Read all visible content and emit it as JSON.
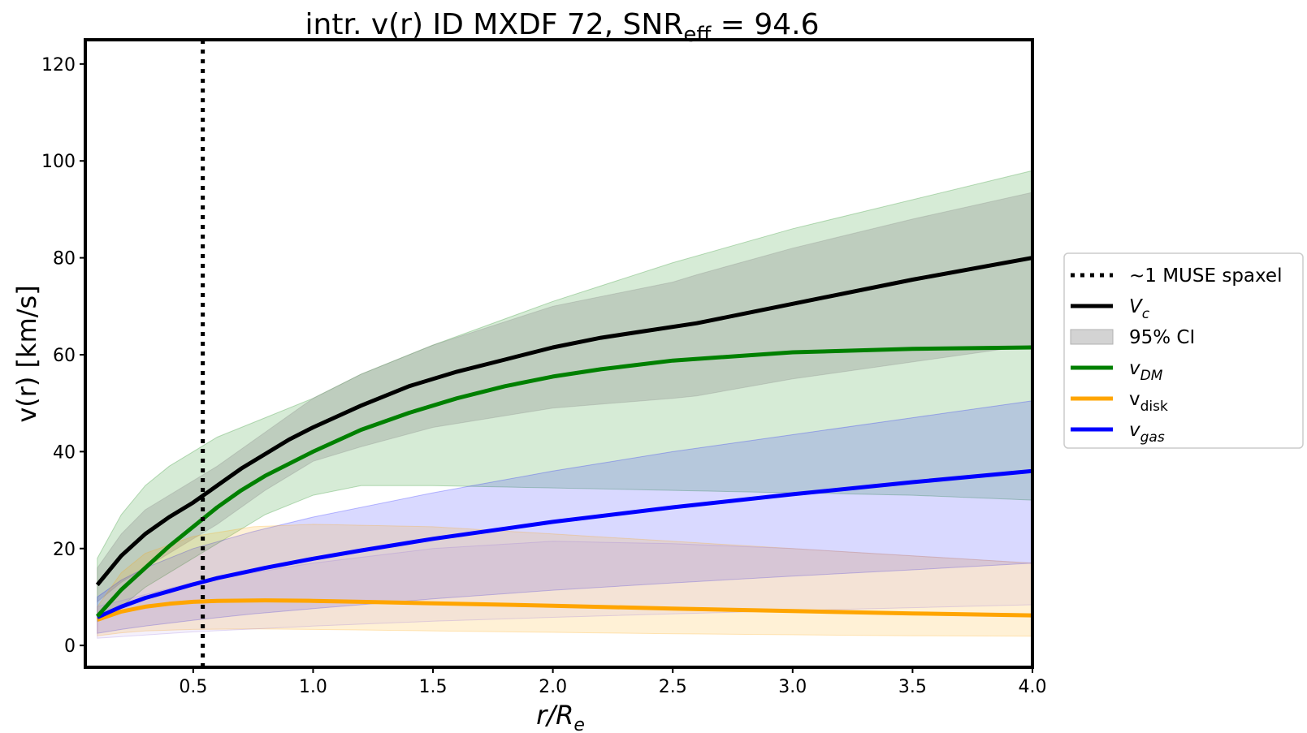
{
  "chart_data": {
    "type": "line",
    "title": {
      "main": "intr. v(r) ID MXDF 72, SNR",
      "sub": "eff",
      "tail": " = 94.6"
    },
    "xlabel": {
      "base": "r/R",
      "sub": "e"
    },
    "ylabel": "v(r) [km/s]",
    "xlim": [
      0.05,
      4.0
    ],
    "ylim": [
      -4.5,
      125
    ],
    "xticks": [
      0.5,
      1.0,
      1.5,
      2.0,
      2.5,
      3.0,
      3.5,
      4.0
    ],
    "xtick_labels": [
      "0.5",
      "1.0",
      "1.5",
      "2.0",
      "2.5",
      "3.0",
      "3.5",
      "4.0"
    ],
    "yticks": [
      0,
      20,
      40,
      60,
      80,
      100,
      120
    ],
    "ytick_labels": [
      "0",
      "20",
      "40",
      "60",
      "80",
      "100",
      "120"
    ],
    "grid": false,
    "legend_position": "right-outside",
    "vline": {
      "x": 0.54,
      "style": "dotted",
      "color": "#000000",
      "name": "~1 MUSE spaxel"
    },
    "legend": [
      {
        "kind": "dotted",
        "color": "#000000",
        "label": "~1 MUSE spaxel"
      },
      {
        "kind": "line",
        "color": "#000000",
        "label_base": "V",
        "label_sub": "c",
        "italic": true
      },
      {
        "kind": "patch",
        "color": "#d3d3d3",
        "label": "95% CI"
      },
      {
        "kind": "line",
        "color": "#008000",
        "label_base": "v",
        "label_sub": "DM",
        "italic": true
      },
      {
        "kind": "line",
        "color": "#ffa500",
        "label_base": "v",
        "label_sub": "disk",
        "italic": false
      },
      {
        "kind": "line",
        "color": "#0000ff",
        "label_base": "v",
        "label_sub": "gas",
        "italic": true
      }
    ],
    "bands": [
      {
        "series": "DM",
        "color": "#008000",
        "opacity": 0.16,
        "x": [
          0.1,
          0.2,
          0.3,
          0.4,
          0.5,
          0.6,
          0.8,
          1.0,
          1.2,
          1.5,
          2.0,
          2.5,
          3.0,
          3.5,
          4.0
        ],
        "lower": [
          5,
          8,
          12,
          15,
          18,
          21,
          27,
          31,
          33,
          33,
          32.5,
          32,
          31.5,
          31,
          30
        ],
        "upper": [
          18,
          27,
          33,
          37,
          40,
          43,
          47,
          51,
          56,
          62,
          71,
          79,
          86,
          92,
          98
        ]
      },
      {
        "series": "Vc",
        "color": "#808080",
        "opacity": 0.28,
        "x": [
          0.1,
          0.2,
          0.3,
          0.4,
          0.5,
          0.6,
          0.8,
          1.0,
          1.2,
          1.5,
          2.0,
          2.5,
          2.6,
          3.0,
          3.5,
          4.0
        ],
        "lower": [
          9,
          13,
          16,
          19,
          22,
          25,
          32,
          38,
          41,
          45,
          49,
          51,
          51.5,
          55,
          58.5,
          62
        ],
        "upper": [
          16,
          23,
          28,
          31,
          34,
          37,
          44,
          51,
          56,
          62,
          70,
          75,
          76.5,
          82,
          88,
          93.5
        ]
      },
      {
        "series": "gas",
        "color": "#0000ff",
        "opacity": 0.15,
        "x": [
          0.1,
          0.2,
          0.3,
          0.5,
          0.75,
          1.0,
          1.5,
          2.0,
          2.5,
          3.0,
          3.5,
          4.0
        ],
        "lower": [
          2.5,
          3.3,
          4.0,
          5.2,
          6.5,
          7.6,
          9.6,
          11.4,
          12.9,
          14.3,
          15.6,
          17.0
        ],
        "upper": [
          10.0,
          13.5,
          16.0,
          20.0,
          23.5,
          26.5,
          31.5,
          36.0,
          40.0,
          43.5,
          47.0,
          50.5
        ]
      },
      {
        "series": "disk",
        "color": "#ffa500",
        "opacity": 0.16,
        "x": [
          0.1,
          0.2,
          0.3,
          0.5,
          0.75,
          1.0,
          1.5,
          2.0,
          2.5,
          3.0,
          3.5,
          4.0
        ],
        "lower": [
          2.0,
          2.6,
          3.0,
          3.3,
          3.4,
          3.3,
          3.0,
          2.7,
          2.4,
          2.2,
          2.0,
          1.9
        ],
        "upper": [
          8.0,
          15.0,
          19.0,
          22.5,
          24.5,
          25.0,
          24.5,
          23.0,
          21.5,
          20.0,
          18.5,
          17.0
        ]
      },
      {
        "series": "gas-lower-band",
        "color": "#9370db",
        "opacity": 0.1,
        "x": [
          0.1,
          0.5,
          1.0,
          1.5,
          2.0,
          2.5,
          3.0,
          3.5,
          4.0
        ],
        "lower": [
          1.5,
          2.8,
          4.0,
          5.0,
          5.8,
          6.5,
          7.2,
          7.8,
          8.4
        ],
        "upper": [
          8.0,
          13.0,
          17.0,
          20.0,
          21.5,
          21.0,
          20.0,
          18.5,
          17.0
        ]
      }
    ],
    "series": [
      {
        "name": "V_c",
        "color": "#000000",
        "x": [
          0.1,
          0.2,
          0.3,
          0.4,
          0.5,
          0.6,
          0.7,
          0.8,
          0.9,
          1.0,
          1.2,
          1.4,
          1.6,
          1.8,
          2.0,
          2.2,
          2.4,
          2.6,
          3.0,
          3.5,
          4.0
        ],
        "y": [
          12.5,
          18.5,
          23.0,
          26.5,
          29.5,
          33.0,
          36.5,
          39.5,
          42.5,
          45.0,
          49.5,
          53.5,
          56.5,
          59.0,
          61.5,
          63.5,
          65.0,
          66.5,
          70.5,
          75.5,
          80.0
        ]
      },
      {
        "name": "v_DM",
        "color": "#008000",
        "x": [
          0.1,
          0.2,
          0.3,
          0.4,
          0.5,
          0.6,
          0.7,
          0.8,
          0.9,
          1.0,
          1.2,
          1.4,
          1.6,
          1.8,
          2.0,
          2.2,
          2.5,
          3.0,
          3.5,
          4.0
        ],
        "y": [
          6.0,
          11.5,
          16.0,
          20.5,
          24.5,
          28.5,
          32.0,
          35.0,
          37.5,
          40.0,
          44.5,
          48.0,
          51.0,
          53.5,
          55.5,
          57.0,
          58.8,
          60.5,
          61.2,
          61.5
        ]
      },
      {
        "name": "v_disk",
        "color": "#ffa500",
        "x": [
          0.1,
          0.2,
          0.3,
          0.4,
          0.5,
          0.6,
          0.8,
          1.0,
          1.2,
          1.5,
          2.0,
          2.5,
          3.0,
          3.5,
          4.0
        ],
        "y": [
          5.3,
          7.0,
          8.0,
          8.6,
          9.0,
          9.2,
          9.3,
          9.2,
          9.0,
          8.7,
          8.2,
          7.6,
          7.1,
          6.6,
          6.2
        ]
      },
      {
        "name": "v_gas",
        "color": "#0000ff",
        "x": [
          0.1,
          0.2,
          0.3,
          0.4,
          0.5,
          0.6,
          0.8,
          1.0,
          1.2,
          1.5,
          2.0,
          2.5,
          3.0,
          3.5,
          4.0
        ],
        "y": [
          5.8,
          8.0,
          9.8,
          11.2,
          12.6,
          13.9,
          16.0,
          17.9,
          19.6,
          22.0,
          25.5,
          28.5,
          31.2,
          33.7,
          36.0
        ]
      }
    ]
  }
}
